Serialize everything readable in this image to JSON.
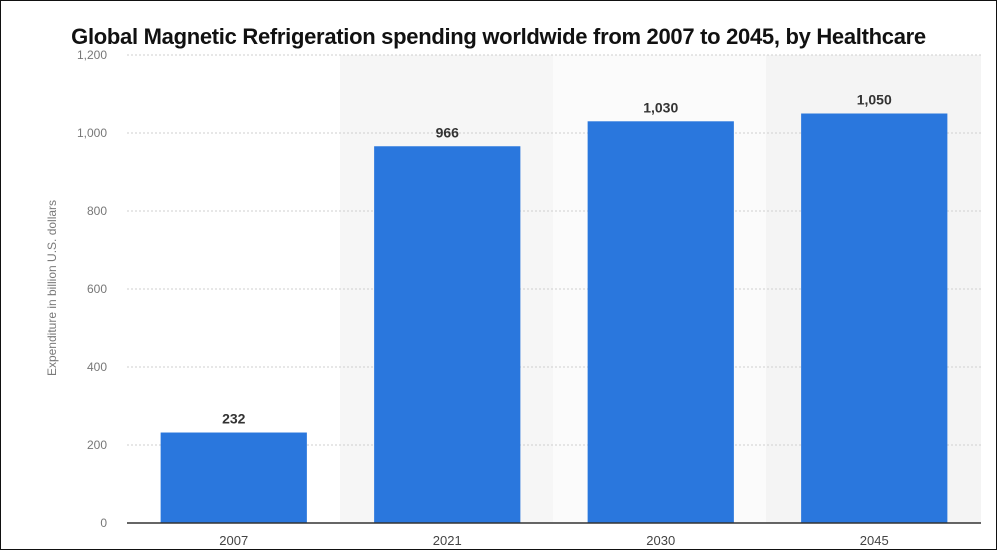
{
  "chart_data": {
    "type": "bar",
    "title": "Global Magnetic Refrigeration spending worldwide from 2007 to 2045, by Healthcare",
    "xlabel": "",
    "ylabel": "Expenditure in billion U.S. dollars",
    "categories": [
      "2007",
      "2021",
      "2030",
      "2045"
    ],
    "values": [
      232,
      966,
      1030,
      1050
    ],
    "value_labels": [
      "232",
      "966",
      "1,030",
      "1,050"
    ],
    "ylim": [
      0,
      1200
    ],
    "yticks": [
      0,
      200,
      400,
      600,
      800,
      1000,
      1200
    ],
    "ytick_labels": [
      "0",
      "200",
      "400",
      "600",
      "800",
      "1,000",
      "1,200"
    ],
    "grid": true,
    "bar_color": "#2a77dd"
  }
}
